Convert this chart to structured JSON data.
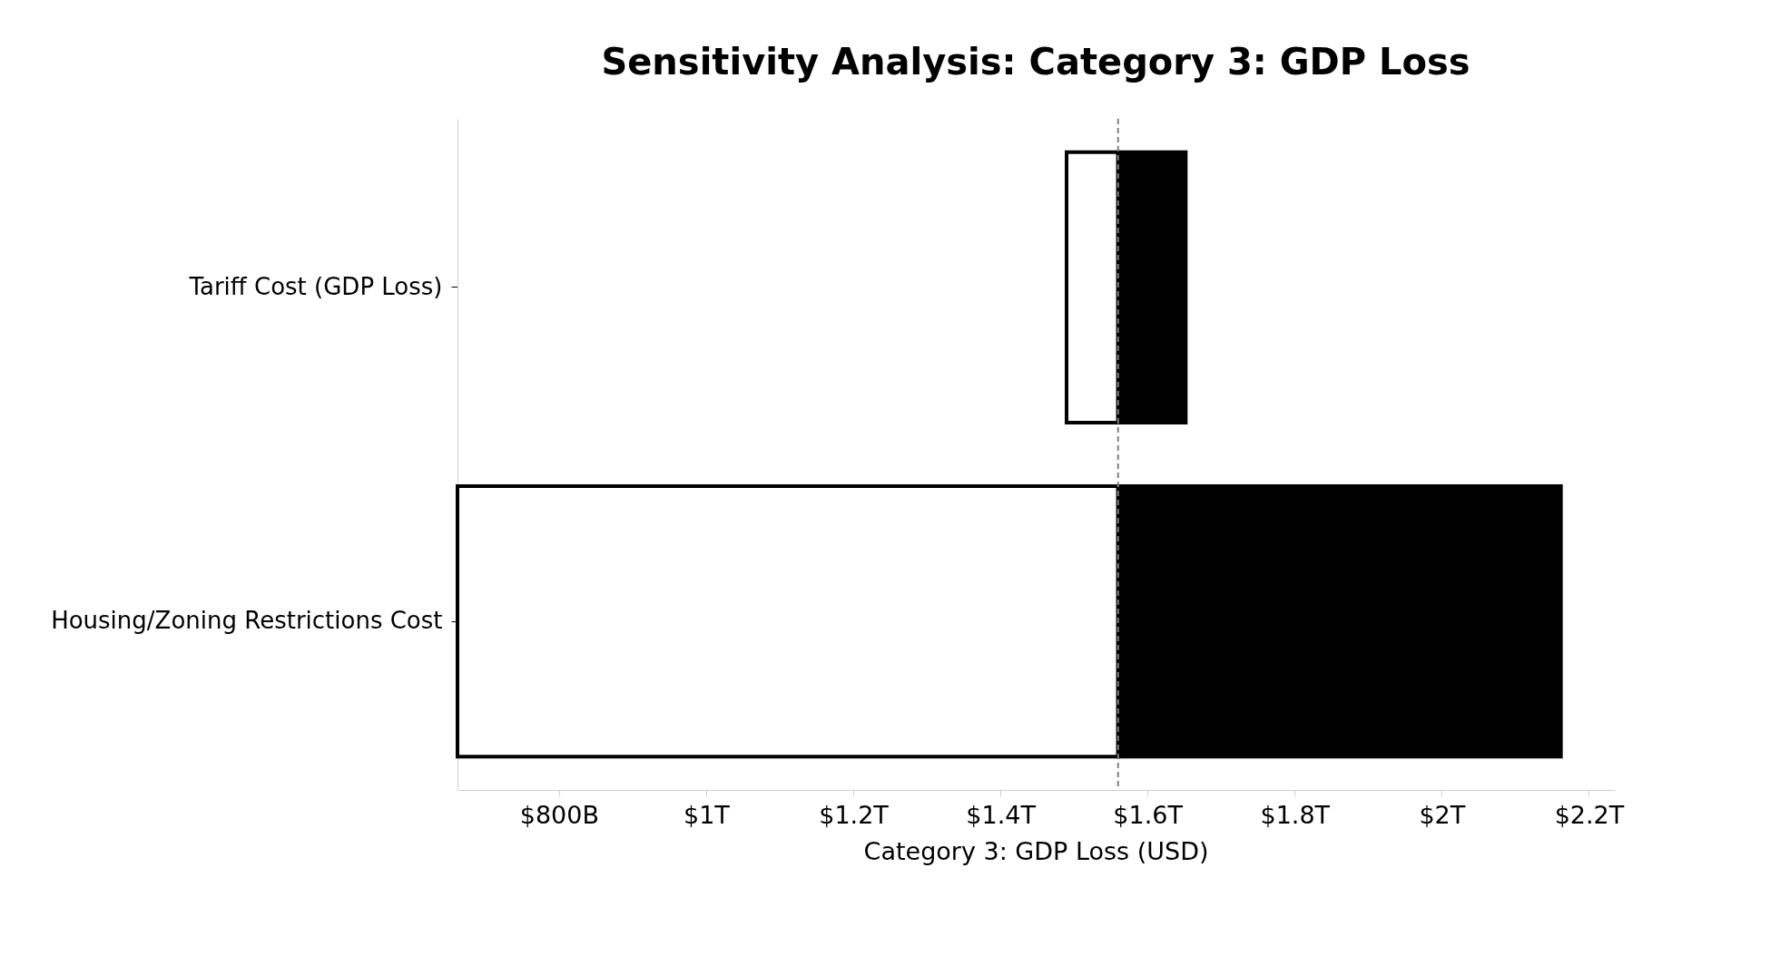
{
  "chart_data": {
    "type": "bar",
    "orientation": "horizontal",
    "title": "Sensitivity Analysis: Category 3: GDP Loss",
    "xlabel": "Category 3: GDP Loss (USD)",
    "categories": [
      "Tariff Cost (GDP Loss)",
      "Housing/Zoning Restrictions Cost"
    ],
    "series": [
      {
        "color": "#ffffff",
        "base": [
          1560000000000.0,
          1560000000000.0
        ],
        "values": [
          -70000000000.0,
          -898000000000.0
        ]
      },
      {
        "color": "#000000",
        "base": [
          1560000000000.0,
          1560000000000.0
        ],
        "values": [
          92000000000.0,
          602000000000.0
        ]
      }
    ],
    "xlim": [
      662000000000.0,
      2234000000000.0
    ],
    "xticks": [
      {
        "value": 800000000000.0,
        "label": "$800B"
      },
      {
        "value": 1000000000000.0,
        "label": "$1T"
      },
      {
        "value": 1200000000000.0,
        "label": "$1.2T"
      },
      {
        "value": 1400000000000.0,
        "label": "$1.4T"
      },
      {
        "value": 1600000000000.0,
        "label": "$1.6T"
      },
      {
        "value": 1800000000000.0,
        "label": "$1.8T"
      },
      {
        "value": 2000000000000.0,
        "label": "$2T"
      },
      {
        "value": 2200000000000.0,
        "label": "$2.2T"
      }
    ],
    "ref_lines": [
      {
        "axis": "x",
        "value": 1560000000000.0,
        "color": "#808080",
        "line_style": "dashed"
      }
    ],
    "grid": false,
    "legend": false
  }
}
